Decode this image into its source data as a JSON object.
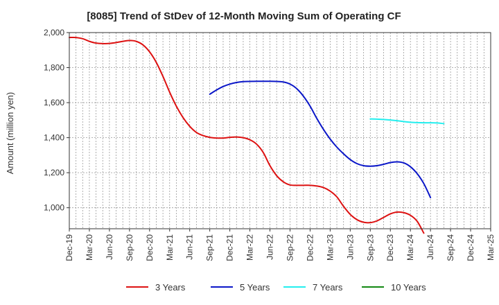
{
  "chart_data": {
    "type": "line",
    "title": "[8085]  Trend of StDev of 12-Month Moving Sum of Operating CF",
    "xlabel": "",
    "ylabel": "Amount (million yen)",
    "ylim": [
      880,
      2000
    ],
    "yticks": [
      1000,
      1200,
      1400,
      1600,
      1800,
      2000
    ],
    "ytick_labels": [
      "1,000",
      "1,200",
      "1,400",
      "1,600",
      "1,800",
      "2,000"
    ],
    "xtick_labels": [
      "Dec-19",
      "Mar-20",
      "Jun-20",
      "Sep-20",
      "Dec-20",
      "Mar-21",
      "Jun-21",
      "Sep-21",
      "Dec-21",
      "Mar-22",
      "Jun-22",
      "Sep-22",
      "Dec-22",
      "Mar-23",
      "Jun-23",
      "Sep-23",
      "Dec-23",
      "Mar-24",
      "Jun-24",
      "Sep-24",
      "Dec-24",
      "Mar-25"
    ],
    "grid": true,
    "legend_position": "bottom",
    "series": [
      {
        "name": "3 Years",
        "color": "#dd1111",
        "start": "Dec-19",
        "values": [
          1972,
          1972,
          1965,
          1950,
          1940,
          1937,
          1938,
          1943,
          1950,
          1955,
          1950,
          1930,
          1890,
          1830,
          1750,
          1660,
          1580,
          1515,
          1465,
          1430,
          1412,
          1402,
          1398,
          1398,
          1402,
          1404,
          1400,
          1388,
          1363,
          1315,
          1240,
          1183,
          1148,
          1130,
          1128,
          1128,
          1128,
          1124,
          1115,
          1095,
          1062,
          1008,
          962,
          932,
          917,
          915,
          925,
          945,
          965,
          975,
          972,
          957,
          923,
          855
        ]
      },
      {
        "name": "5 Years",
        "color": "#0a16c8",
        "start": "Sep-21",
        "values": [
          1648,
          1672,
          1692,
          1706,
          1715,
          1720,
          1721,
          1722,
          1722,
          1722,
          1721,
          1718,
          1706,
          1680,
          1637,
          1580,
          1510,
          1447,
          1392,
          1346,
          1308,
          1275,
          1252,
          1240,
          1237,
          1240,
          1248,
          1258,
          1262,
          1256,
          1234,
          1195,
          1138,
          1058
        ]
      },
      {
        "name": "7 Years",
        "color": "#22eeee",
        "start": "Sep-23",
        "values": [
          1507,
          1506,
          1504,
          1501,
          1497,
          1492,
          1488,
          1486,
          1485,
          1485,
          1484,
          1480
        ]
      },
      {
        "name": "10 Years",
        "color": "#118811",
        "start": "Sep-24",
        "values": []
      }
    ]
  }
}
